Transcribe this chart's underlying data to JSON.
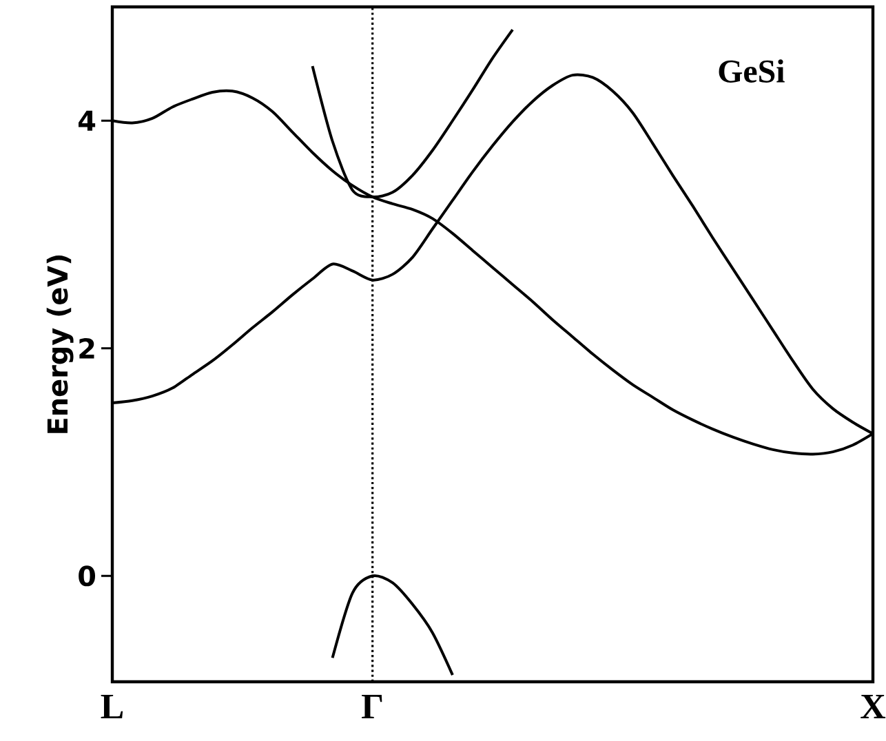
{
  "chart_data": {
    "type": "line",
    "ylabel": "Energy (eV)",
    "categories": [
      "L",
      null,
      null,
      null,
      null,
      null,
      null,
      null,
      null,
      null,
      null,
      null,
      null,
      "Γ",
      null,
      null,
      null,
      null,
      null,
      null,
      null,
      null,
      null,
      null,
      null,
      null,
      null,
      null,
      null,
      null,
      null,
      null,
      null,
      null,
      null,
      null,
      null,
      null,
      "X"
    ],
    "ylim": [
      -0.93,
      5
    ],
    "yticks": [
      0,
      2,
      4
    ],
    "annotations": [
      "GeSi"
    ],
    "ref_lines": [
      {
        "axis": "x",
        "value": "Γ",
        "line_style": "dotted",
        "color": "#000000"
      }
    ],
    "marker": "none",
    "line_style": "solid",
    "series": [
      {
        "color": "#000000",
        "values": [
          null,
          null,
          null,
          null,
          null,
          null,
          null,
          null,
          null,
          null,
          null,
          -0.72,
          -0.15,
          0,
          -0.06,
          -0.25,
          -0.5,
          -0.87,
          null,
          null,
          null,
          null,
          null,
          null,
          null,
          null,
          null,
          null,
          null,
          null,
          null,
          null,
          null,
          null,
          null,
          null,
          null,
          null,
          null
        ]
      },
      {
        "color": "#000000",
        "values": [
          1.52,
          1.54,
          1.58,
          1.65,
          1.77,
          1.89,
          2.03,
          2.18,
          2.32,
          2.47,
          2.61,
          2.74,
          2.68,
          2.6,
          2.65,
          2.8,
          3.05,
          3.3,
          3.55,
          3.78,
          3.99,
          4.17,
          4.31,
          4.4,
          4.38,
          4.26,
          4.07,
          3.8,
          3.52,
          3.25,
          2.97,
          2.7,
          2.43,
          2.16,
          1.89,
          1.64,
          1.47,
          1.35,
          1.25
        ]
      },
      {
        "color": "#000000",
        "values": [
          4.0,
          3.98,
          4.02,
          4.12,
          4.19,
          4.25,
          4.26,
          4.2,
          4.08,
          3.9,
          3.72,
          3.56,
          3.43,
          3.33,
          3.27,
          3.22,
          3.14,
          3.01,
          2.86,
          2.71,
          2.56,
          2.41,
          2.25,
          2.1,
          1.95,
          1.81,
          1.68,
          1.57,
          1.46,
          1.37,
          1.29,
          1.22,
          1.16,
          1.11,
          1.08,
          1.07,
          1.09,
          1.15,
          1.25
        ]
      },
      {
        "color": "#000000",
        "values": [
          null,
          null,
          null,
          null,
          null,
          null,
          null,
          null,
          null,
          null,
          4.48,
          3.82,
          3.39,
          3.33,
          3.37,
          3.52,
          3.74,
          4.0,
          4.27,
          4.55,
          4.8,
          null,
          null,
          null,
          null,
          null,
          null,
          null,
          null,
          null,
          null,
          null,
          null,
          null,
          null,
          null,
          null,
          null,
          null
        ]
      }
    ]
  }
}
